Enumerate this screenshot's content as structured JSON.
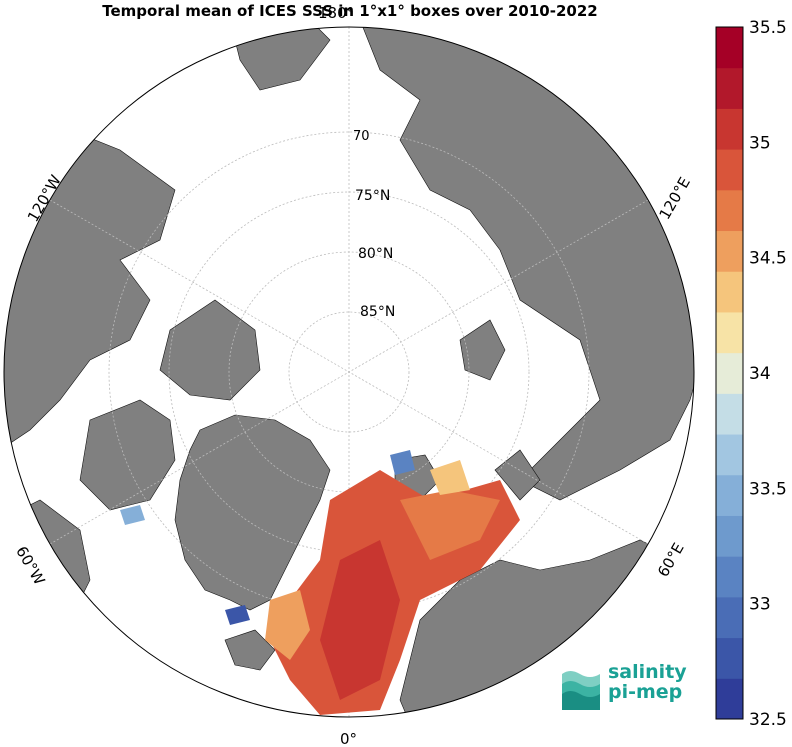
{
  "title": "Temporal mean of ICES SSS in 1°x1° boxes over 2010-2022",
  "latitude_labels": [
    "70",
    "75°N",
    "80°N",
    "85°N"
  ],
  "longitude_labels": {
    "top": "180°",
    "bottom": "0°",
    "left_upper": "120°W",
    "left_lower": "60°W",
    "right_upper": "120°E",
    "right_lower": "60°E"
  },
  "colorbar": {
    "min": 32.5,
    "max": 35.5,
    "ticks": [
      "35.5",
      "35",
      "34.5",
      "34",
      "33.5",
      "33",
      "32.5"
    ],
    "colors": [
      "#2f3d99",
      "#3b56a8",
      "#4a6db6",
      "#5a83c2",
      "#6e9acd",
      "#85afd8",
      "#a2c6e1",
      "#c4dde6",
      "#e6ecd8",
      "#f7e3a6",
      "#f5c57c",
      "#ee9f5e",
      "#e57a47",
      "#d9553a",
      "#c83630",
      "#b2182b",
      "#a50026"
    ]
  },
  "colors": {
    "land": "#808080",
    "ocean": "#ffffff",
    "grid": "#bbbbbb"
  },
  "logo": {
    "line1": "salinity",
    "line2": "pi-mep",
    "icon": "wave-logo-icon"
  }
}
